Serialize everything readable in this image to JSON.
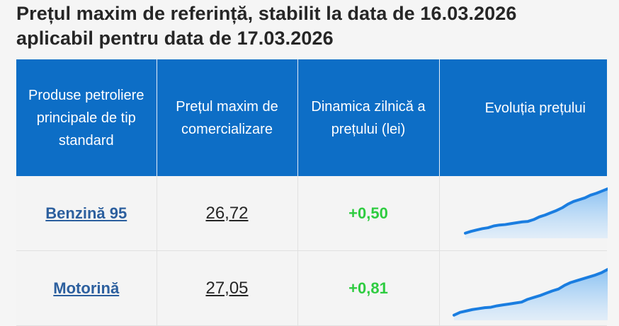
{
  "title": {
    "line1": "Prețul maxim de referință, stabilit la data de 16.03.2026",
    "line2": "aplicabil pentru data de 17.03.2026"
  },
  "table": {
    "headers": [
      "Produse petroliere principale de tip standard",
      "Prețul maxim de comercializare",
      "Dinamica zilnică a prețului (lei)",
      "Evoluția prețului"
    ],
    "rows": [
      {
        "product": "Benzină 95",
        "price": "26,72",
        "delta": "+0,50",
        "trend": [
          0.02,
          0.06,
          0.09,
          0.12,
          0.14,
          0.18,
          0.2,
          0.21,
          0.23,
          0.25,
          0.27,
          0.28,
          0.32,
          0.38,
          0.42,
          0.47,
          0.52,
          0.58,
          0.66,
          0.72,
          0.76,
          0.8,
          0.86,
          0.9,
          0.95,
          1.0
        ]
      },
      {
        "product": "Motorină",
        "price": "27,05",
        "delta": "+0,81",
        "trend": [
          0.02,
          0.08,
          0.11,
          0.14,
          0.16,
          0.18,
          0.19,
          0.22,
          0.24,
          0.26,
          0.28,
          0.3,
          0.36,
          0.4,
          0.44,
          0.49,
          0.54,
          0.58,
          0.66,
          0.72,
          0.76,
          0.8,
          0.84,
          0.88,
          0.93,
          1.0
        ]
      }
    ]
  },
  "colors": {
    "header_bg": "#0d6ec6",
    "link": "#2c5f9e",
    "positive": "#2ecc40",
    "spark_line": "#1a7de0"
  }
}
